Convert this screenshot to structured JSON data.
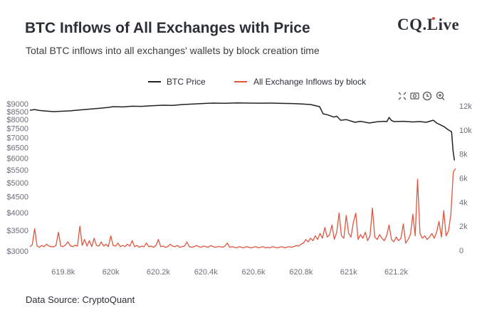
{
  "title": "BTC Inflows of All Exchanges with Price",
  "subtitle": "Total BTC inflows into all exchanges' wallets by block creation time",
  "logo": "CQ.Live",
  "source": "Data Source: CryptoQuant",
  "toolbar": {
    "icons": [
      "autoscale-icon",
      "camera-icon",
      "clock-icon",
      "zoom-in-icon"
    ]
  },
  "chart_data": {
    "type": "line",
    "title": "BTC Inflows of All Exchanges with Price",
    "legend_position": "top-center",
    "grid": false,
    "x_axis": {
      "range": [
        619.66,
        621.45
      ],
      "ticks": [
        619.8,
        620.0,
        620.2,
        620.4,
        620.6,
        620.8,
        621.0,
        621.2
      ],
      "tick_labels": [
        "619.8k",
        "620k",
        "620.2k",
        "620.4k",
        "620.6k",
        "620.8k",
        "621k",
        "621.2k"
      ]
    },
    "y_left": {
      "scale": "log",
      "range": [
        3000,
        9000
      ],
      "ticks": [
        9000,
        8500,
        8000,
        7500,
        7000,
        6500,
        6000,
        5500,
        5000,
        4500,
        4000,
        3500,
        3000
      ],
      "tick_labels": [
        "$9000",
        "$8500",
        "$8000",
        "$7500",
        "$7000",
        "$6500",
        "$6000",
        "$5500",
        "$5000",
        "$4500",
        "$4000",
        "$3500",
        "$3000"
      ]
    },
    "y_right": {
      "scale": "linear",
      "range": [
        0,
        12000
      ],
      "ticks": [
        0,
        2000,
        4000,
        6000,
        8000,
        10000,
        12000
      ],
      "tick_labels": [
        "0",
        "2k",
        "4k",
        "6k",
        "8k",
        "10k",
        "12k"
      ]
    },
    "series": [
      {
        "name": "BTC Price",
        "axis": "left",
        "color": "#1f2126",
        "points": [
          [
            619.66,
            8580
          ],
          [
            619.68,
            8620
          ],
          [
            619.7,
            8560
          ],
          [
            619.73,
            8520
          ],
          [
            619.76,
            8490
          ],
          [
            619.79,
            8510
          ],
          [
            619.83,
            8540
          ],
          [
            619.87,
            8600
          ],
          [
            619.91,
            8650
          ],
          [
            619.95,
            8700
          ],
          [
            619.99,
            8760
          ],
          [
            620.01,
            8810
          ],
          [
            620.05,
            8790
          ],
          [
            620.09,
            8840
          ],
          [
            620.13,
            8830
          ],
          [
            620.17,
            8870
          ],
          [
            620.22,
            8905
          ],
          [
            620.26,
            8890
          ],
          [
            620.3,
            8950
          ],
          [
            620.35,
            8990
          ],
          [
            620.4,
            9030
          ],
          [
            620.43,
            9050
          ],
          [
            620.48,
            9040
          ],
          [
            620.53,
            9060
          ],
          [
            620.58,
            9050
          ],
          [
            620.63,
            9045
          ],
          [
            620.67,
            9050
          ],
          [
            620.72,
            9030
          ],
          [
            620.76,
            9020
          ],
          [
            620.79,
            9000
          ],
          [
            620.84,
            8950
          ],
          [
            620.878,
            8810
          ],
          [
            620.893,
            8350
          ],
          [
            620.91,
            8300
          ],
          [
            620.938,
            8150
          ],
          [
            620.95,
            8200
          ],
          [
            620.967,
            7960
          ],
          [
            620.99,
            8000
          ],
          [
            621.027,
            7840
          ],
          [
            621.05,
            7900
          ],
          [
            621.087,
            7800
          ],
          [
            621.12,
            7870
          ],
          [
            621.15,
            7900
          ],
          [
            621.161,
            7880
          ],
          [
            621.17,
            8130
          ],
          [
            621.18,
            7950
          ],
          [
            621.191,
            7880
          ],
          [
            621.23,
            7900
          ],
          [
            621.27,
            7860
          ],
          [
            621.3,
            7880
          ],
          [
            621.326,
            7840
          ],
          [
            621.356,
            7960
          ],
          [
            621.37,
            7800
          ],
          [
            621.385,
            7700
          ],
          [
            621.4,
            7600
          ],
          [
            621.415,
            7450
          ],
          [
            621.433,
            7300
          ],
          [
            621.439,
            6360
          ],
          [
            621.445,
            5900
          ]
        ]
      },
      {
        "name": "All Exchange Inflows by block",
        "axis": "right",
        "color": "#e0553f",
        "x_start": 619.66,
        "x_step": 0.01,
        "values": [
          300,
          450,
          1800,
          350,
          250,
          400,
          300,
          500,
          350,
          300,
          280,
          400,
          1500,
          350,
          300,
          450,
          700,
          380,
          300,
          420,
          350,
          2000,
          400,
          900,
          350,
          800,
          300,
          1000,
          400,
          350,
          700,
          350,
          500,
          300,
          1200,
          400,
          350,
          600,
          300,
          400,
          300,
          500,
          350,
          800,
          300,
          400,
          250,
          350,
          300,
          600,
          300,
          350,
          250,
          400,
          900,
          300,
          350,
          250,
          300,
          500,
          350,
          300,
          400,
          250,
          300,
          350,
          700,
          300,
          250,
          300,
          400,
          300,
          250,
          350,
          300,
          250,
          400,
          300,
          250,
          300,
          300,
          250,
          350,
          600,
          250,
          300,
          250,
          200,
          300,
          250,
          200,
          300,
          250,
          200,
          250,
          300,
          200,
          250,
          300,
          200,
          250,
          200,
          300,
          250,
          200,
          250,
          300,
          200,
          250,
          300,
          250,
          300,
          400,
          350,
          500,
          600,
          900,
          700,
          1000,
          800,
          1200,
          900,
          1400,
          1000,
          1900,
          1100,
          1300,
          2100,
          900,
          1500,
          3100,
          1200,
          1000,
          2900,
          1400,
          1100,
          2300,
          3100,
          900,
          1300,
          1000,
          1500,
          800,
          1200,
          3500,
          1100,
          900,
          1300,
          1000,
          800,
          1200,
          2100,
          900,
          700,
          1100,
          800,
          1000,
          2200,
          600,
          900,
          1300,
          3000,
          1200,
          5900,
          1400,
          1000,
          1200,
          900,
          1100,
          1400,
          1000,
          1500,
          2400,
          1100,
          3300,
          1200,
          1600,
          3000,
          6500,
          6800
        ]
      }
    ]
  }
}
